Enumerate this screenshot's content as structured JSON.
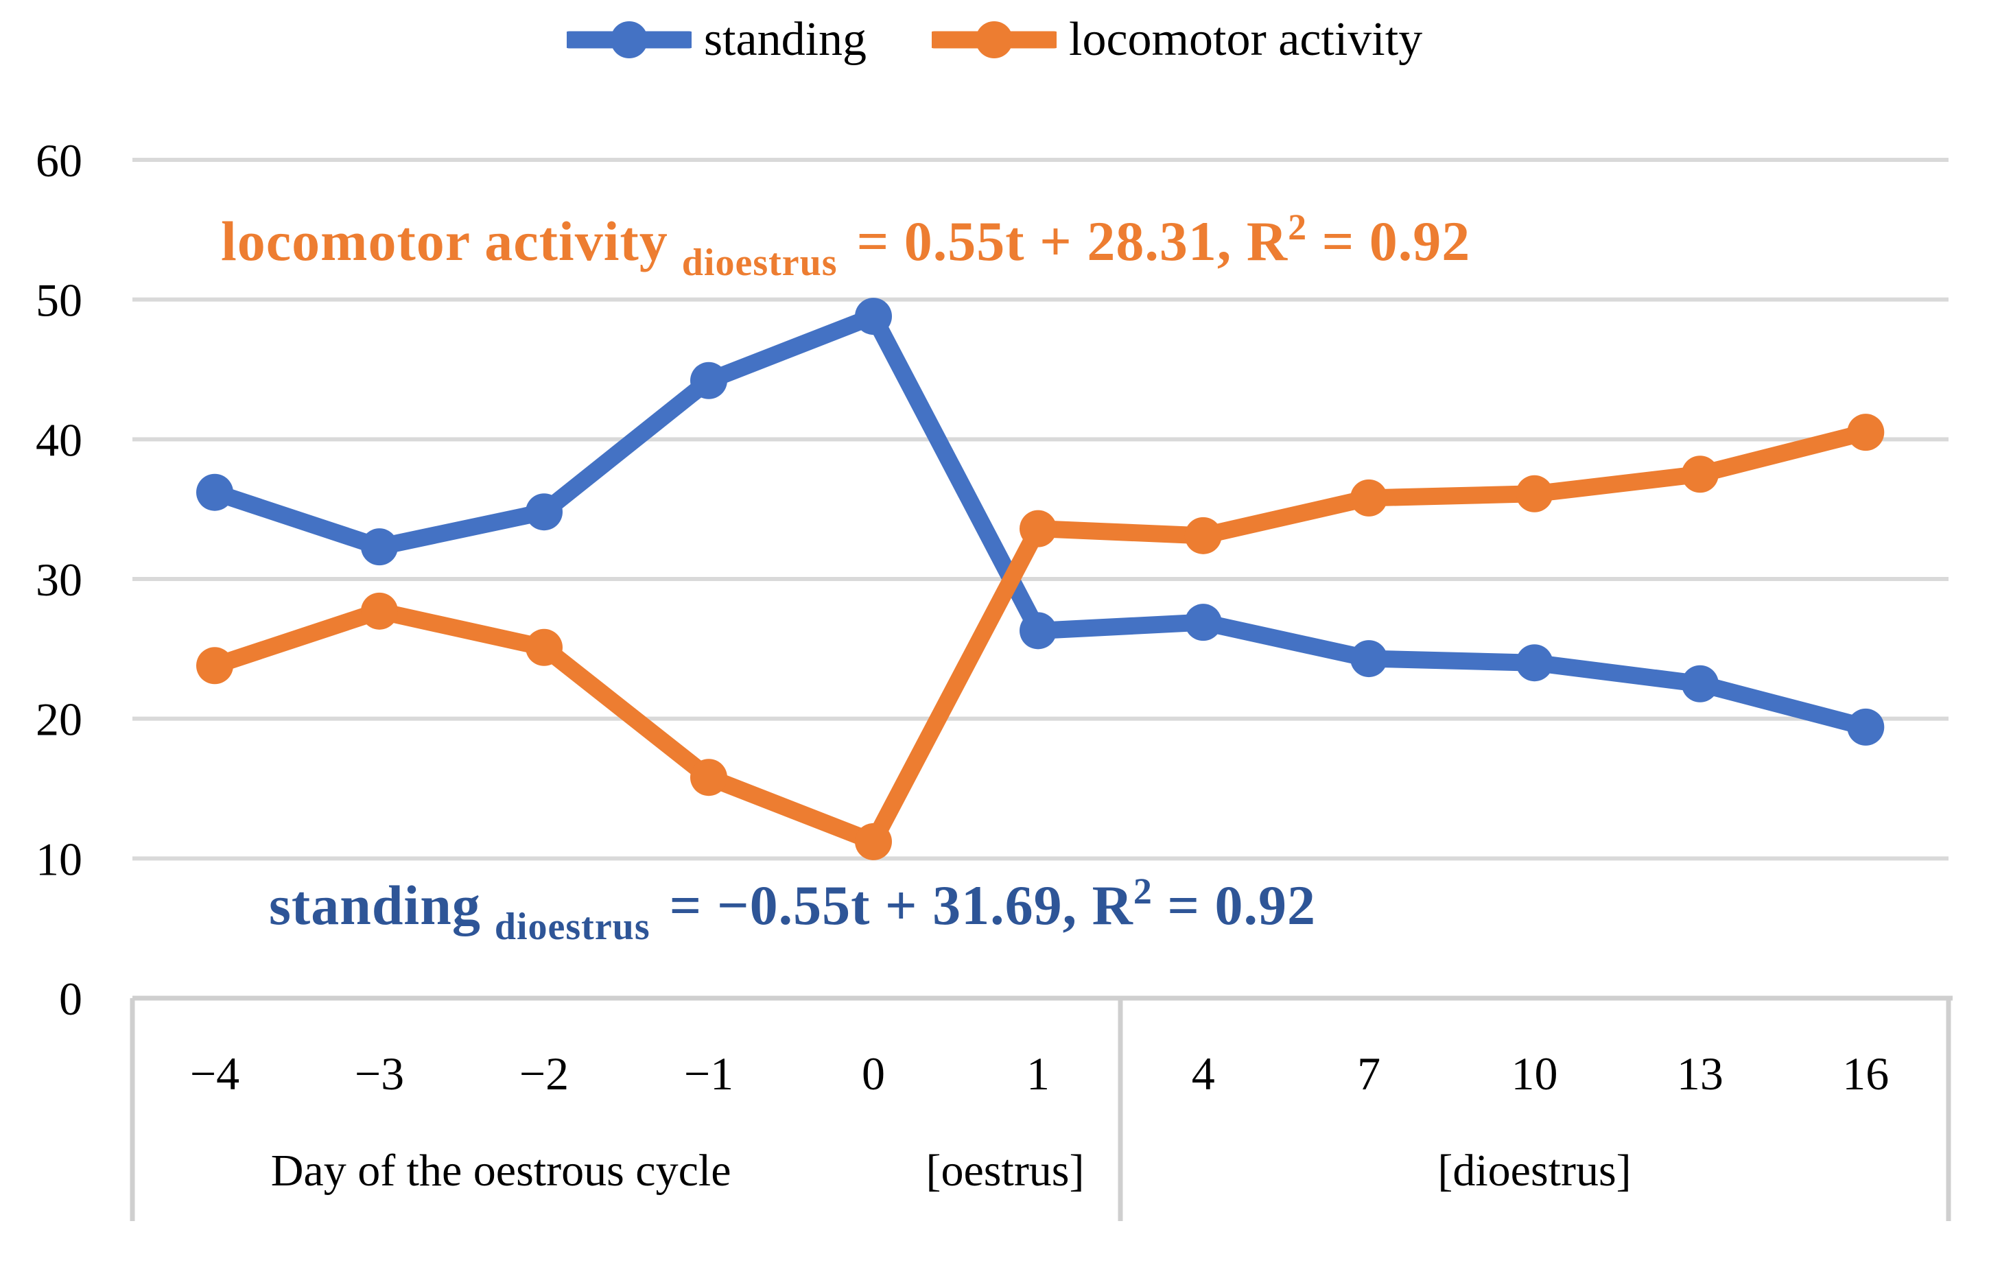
{
  "legend": {
    "series": [
      {
        "name": "standing",
        "color": "#4472C4"
      },
      {
        "name": "locomotor activity",
        "color": "#ED7D31"
      }
    ]
  },
  "annotations": {
    "locomotor_fit": {
      "label": "locomotor activity",
      "subscript": "dioestrus",
      "eq_pre": "= 0.55t + 28.31, R",
      "exp": "2",
      "eq_post": " = 0.92",
      "color": "#ED7D31"
    },
    "standing_fit": {
      "label": "standing",
      "subscript": "dioestrus",
      "eq_pre": "= −0.55t + 31.69, R",
      "exp": "2",
      "eq_post": " = 0.92",
      "color": "#2E5597"
    }
  },
  "chart_data": {
    "type": "line",
    "categories": [
      "−4",
      "−3",
      "−2",
      "−1",
      "0",
      "1",
      "4",
      "7",
      "10",
      "13",
      "16"
    ],
    "series": [
      {
        "name": "standing",
        "color": "#4472C4",
        "values": [
          36.2,
          32.3,
          34.8,
          44.2,
          48.8,
          26.3,
          26.9,
          24.3,
          24.0,
          22.5,
          19.4
        ]
      },
      {
        "name": "locomotor activity",
        "color": "#ED7D31",
        "values": [
          23.8,
          27.7,
          25.1,
          15.8,
          11.2,
          33.6,
          33.1,
          35.8,
          36.1,
          37.5,
          40.5
        ]
      }
    ],
    "ylim": [
      0,
      60
    ],
    "yticks": [
      "0",
      "10",
      "20",
      "30",
      "40",
      "50",
      "60"
    ],
    "grid": "horizontal",
    "legend_position": "top",
    "xaxis_groups": [
      {
        "ticks": [
          "−4",
          "−3",
          "−2",
          "−1",
          "0",
          "1"
        ],
        "labels": [
          "Day of the oestrous cycle",
          "[oestrus]"
        ]
      },
      {
        "ticks": [
          "4",
          "7",
          "10",
          "13",
          "16"
        ],
        "labels": [
          "[dioestrus]"
        ]
      }
    ],
    "gridline_color": "#D9D9D9",
    "axis_band_border_color": "#CFCFCF"
  }
}
